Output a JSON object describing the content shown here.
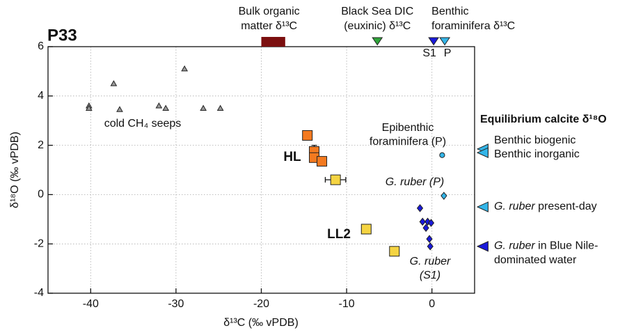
{
  "chart_data": {
    "type": "scatter",
    "title": "P33",
    "xlabel": "δ¹³C (‰ vPDB)",
    "ylabel": "δ¹⁸O (‰ vPDB)",
    "xlim": [
      -45,
      5
    ],
    "ylim": [
      -4,
      6
    ],
    "xticks": [
      -40,
      -30,
      -20,
      -10,
      0
    ],
    "yticks": [
      -4,
      -2,
      0,
      2,
      4,
      6
    ],
    "grid": true,
    "series": [
      {
        "label": [
          "cold CH₄ seeps"
        ],
        "marker": "triangle",
        "color": "#999999",
        "x": [
          -40.2,
          -40.2,
          -37.3,
          -36.6,
          -32,
          -31.2,
          -29,
          -26.8,
          -24.8
        ],
        "values": [
          3.6,
          3.5,
          4.5,
          3.45,
          3.6,
          3.5,
          5.1,
          3.5,
          3.5
        ]
      },
      {
        "label": [
          "HL"
        ],
        "bold": true,
        "marker": "square",
        "color": "#f47a20",
        "x": [
          -14.6,
          -13.8,
          -13.8,
          -12.9
        ],
        "values": [
          2.4,
          1.75,
          1.5,
          1.35
        ],
        "yerr": [
          null,
          0.25,
          null,
          null
        ]
      },
      {
        "label": [
          "LL2"
        ],
        "bold": true,
        "marker": "square",
        "color": "#f5d442",
        "x": [
          -11.3,
          -7.7,
          -4.4
        ],
        "values": [
          0.6,
          -1.4,
          -2.3
        ],
        "xerr": [
          1.2,
          null,
          null
        ]
      },
      {
        "label": [
          "G. ruber",
          "(S1)"
        ],
        "italic": true,
        "marker": "diamond",
        "color": "#1a1adb",
        "x": [
          -1.4,
          -1.1,
          -0.7,
          -0.5,
          -0.1,
          -0.3,
          -0.2
        ],
        "values": [
          -0.55,
          -1.1,
          -1.35,
          -1.1,
          -1.15,
          -1.8,
          -2.1
        ]
      },
      {
        "label": [
          "G. ruber (P)"
        ],
        "italic": true,
        "marker": "diamond",
        "color": "#33b5e8",
        "x": [
          1.4
        ],
        "values": [
          -0.05
        ]
      },
      {
        "label": [
          "Epibenthic",
          "foraminifera (P)"
        ],
        "marker": "circle",
        "color": "#33b5e8",
        "x": [
          1.2
        ],
        "values": [
          1.6
        ]
      }
    ],
    "top_markers": [
      {
        "label": [
          "Bulk organic",
          "matter δ¹³C"
        ],
        "marker": "bar",
        "color": "#7b0f0f",
        "x": [
          -20,
          -17.2
        ]
      },
      {
        "label": [
          "Black Sea DIC",
          "(euxinic) δ¹³C"
        ],
        "marker": "triangle-down",
        "color": "#2fa53a",
        "x": [
          -6.4
        ]
      },
      {
        "label": [
          "Benthic",
          "foraminifera δ¹³C"
        ],
        "marker": "triangle-down",
        "colors": [
          "#1a1adb",
          "#33b5e8"
        ],
        "x": [
          0.2,
          1.5
        ],
        "sub_labels": [
          "S1",
          "P"
        ]
      }
    ],
    "equilibrium": {
      "title": "Equilibrium calcite δ¹⁸O",
      "markers": [
        {
          "values": [
            1.85,
            1.7
          ],
          "colors": [
            "#33b5e8",
            "#33b5e8"
          ],
          "labels": [
            "Benthic biogenic",
            "Benthic inorganic"
          ]
        },
        {
          "values": [
            -0.5
          ],
          "colors": [
            "#33b5e8"
          ],
          "italic": "G. ruber",
          "labels": [
            "present-day"
          ]
        },
        {
          "values": [
            -2.1
          ],
          "colors": [
            "#1a1adb"
          ],
          "italic": "G. ruber",
          "labels": [
            "in Blue Nile-",
            "dominated water"
          ]
        }
      ]
    }
  }
}
